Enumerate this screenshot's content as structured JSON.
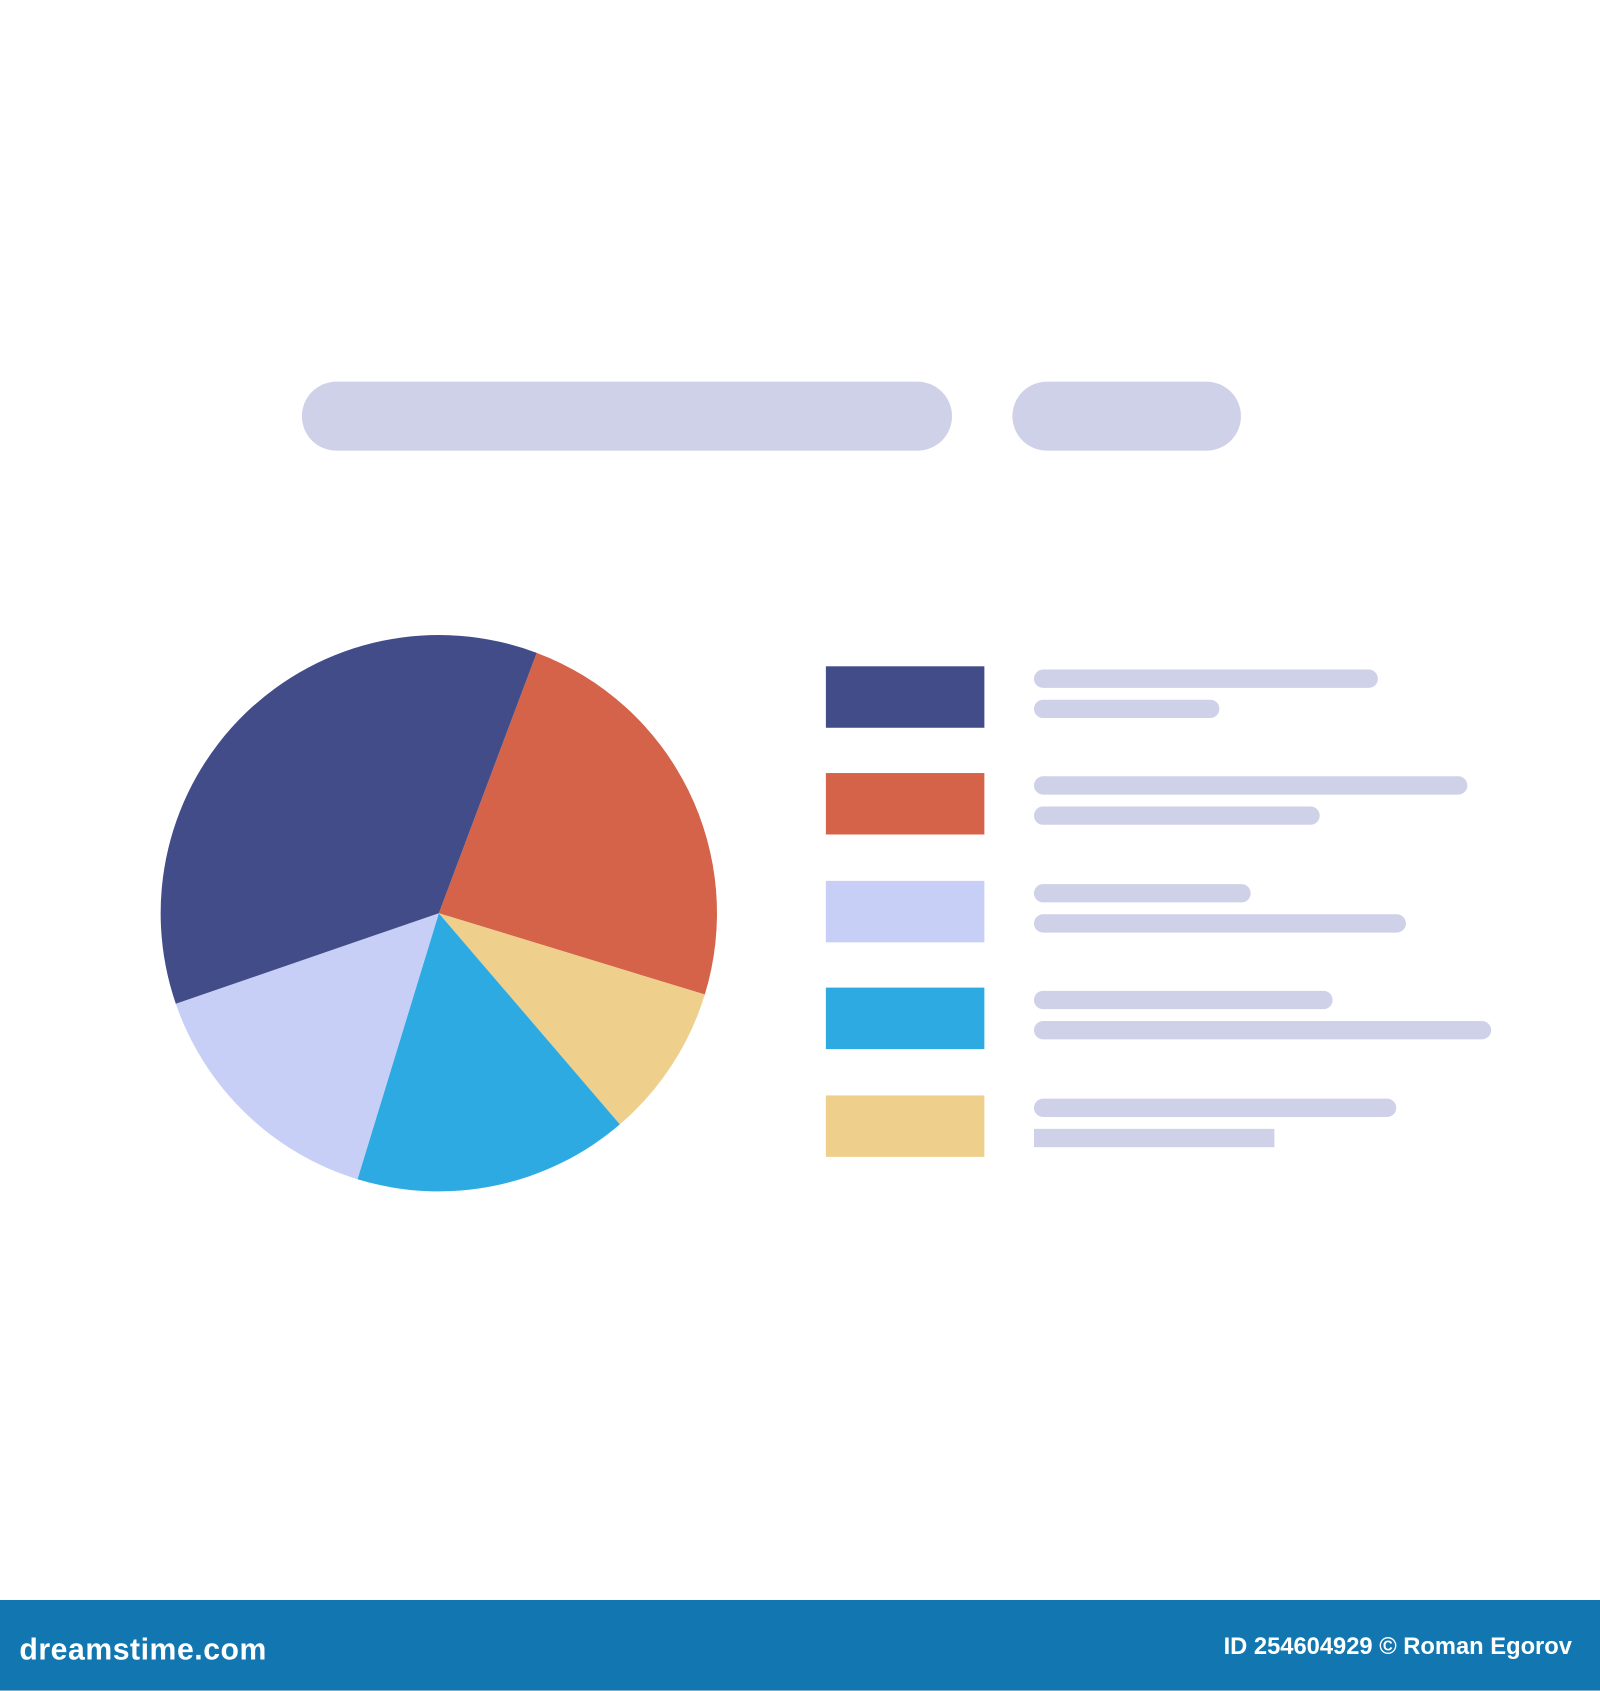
{
  "chart_data": {
    "type": "pie",
    "title": "",
    "start_angle_deg": 20.6,
    "direction": "clockwise",
    "slices": [
      {
        "value": 24,
        "color": "#d5634a"
      },
      {
        "value": 9,
        "color": "#efcf8c"
      },
      {
        "value": 16,
        "color": "#2eaae3"
      },
      {
        "value": 15,
        "color": "#c8cff6"
      },
      {
        "value": 36,
        "color": "#414c89"
      }
    ],
    "legend": {
      "placement": "right",
      "swatches": [
        "#414c89",
        "#d5634a",
        "#c8cff6",
        "#2eaae3",
        "#efcf8c"
      ],
      "labels": "placeholder bars (no text)"
    }
  },
  "colors": {
    "placeholder": "#cfd1e8",
    "footer": "#1277b0"
  },
  "footer": {
    "logo": "dreamstime.com",
    "credit": "ID 254604929 © Roman Egorov"
  }
}
